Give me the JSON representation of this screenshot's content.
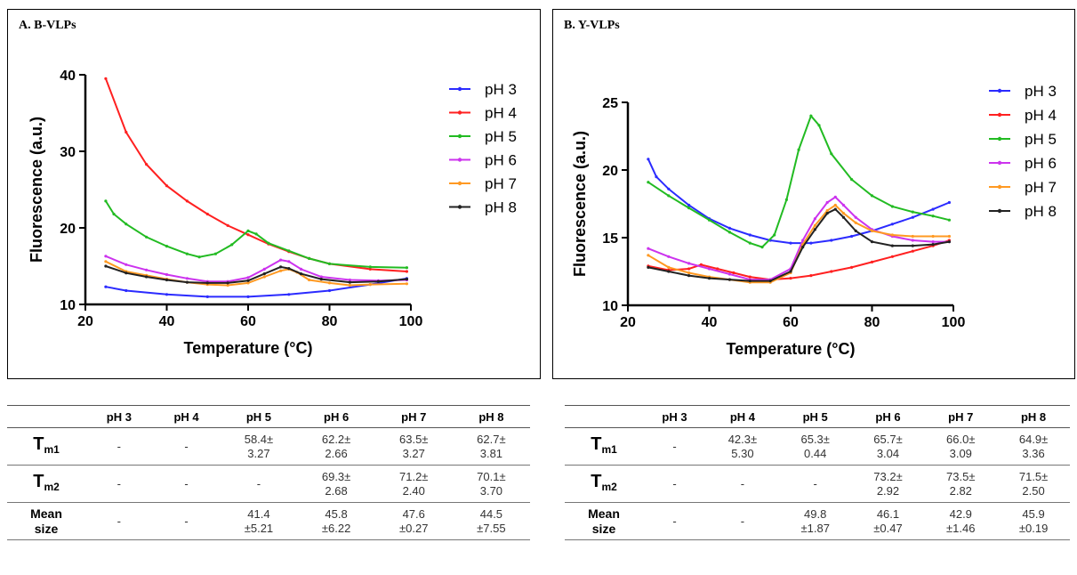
{
  "chart_data": [
    {
      "panel_title": "A. B-VLPs",
      "type": "line",
      "xlabel": "Temperature (°C)",
      "ylabel": "Fluorescence (a.u.)",
      "xlim": [
        20,
        100
      ],
      "ylim": [
        10,
        40
      ],
      "x_ticks": [
        20,
        40,
        60,
        80,
        100
      ],
      "y_ticks": [
        10,
        20,
        30,
        40
      ],
      "legend_position": "right",
      "series": [
        {
          "name": "pH 3",
          "color": "#2b2bff",
          "x": [
            25,
            30,
            40,
            50,
            60,
            70,
            80,
            90,
            99
          ],
          "y": [
            12.3,
            11.8,
            11.3,
            11.0,
            11.0,
            11.3,
            11.8,
            12.6,
            13.4
          ]
        },
        {
          "name": "pH 4",
          "color": "#ff2020",
          "x": [
            25,
            30,
            35,
            40,
            45,
            50,
            55,
            60,
            65,
            70,
            75,
            80,
            90,
            99
          ],
          "y": [
            39.5,
            32.5,
            28.3,
            25.5,
            23.5,
            21.8,
            20.3,
            19.1,
            17.9,
            16.9,
            16.0,
            15.3,
            14.6,
            14.3
          ]
        },
        {
          "name": "pH 5",
          "color": "#22bb22",
          "x": [
            25,
            27,
            30,
            35,
            40,
            45,
            48,
            52,
            56,
            60,
            62,
            65,
            70,
            75,
            80,
            90,
            99
          ],
          "y": [
            23.5,
            21.8,
            20.5,
            18.8,
            17.6,
            16.6,
            16.2,
            16.6,
            17.8,
            19.6,
            19.2,
            18.0,
            17.0,
            16.0,
            15.3,
            14.9,
            14.8
          ]
        },
        {
          "name": "pH 6",
          "color": "#cc33ee",
          "x": [
            25,
            30,
            35,
            40,
            45,
            50,
            55,
            60,
            64,
            68,
            70,
            73,
            78,
            85,
            92,
            99
          ],
          "y": [
            16.3,
            15.2,
            14.5,
            13.9,
            13.4,
            13.0,
            13.0,
            13.5,
            14.6,
            15.8,
            15.6,
            14.6,
            13.6,
            13.2,
            13.1,
            13.2
          ]
        },
        {
          "name": "pH 7",
          "color": "#ff9922",
          "x": [
            25,
            30,
            35,
            40,
            45,
            50,
            55,
            60,
            64,
            68,
            70,
            72,
            75,
            80,
            85,
            90,
            99
          ],
          "y": [
            15.6,
            14.3,
            13.8,
            13.3,
            12.9,
            12.6,
            12.5,
            12.8,
            13.6,
            14.4,
            14.6,
            14.2,
            13.2,
            12.8,
            12.5,
            12.6,
            12.7
          ]
        },
        {
          "name": "pH 8",
          "color": "#222222",
          "x": [
            25,
            30,
            35,
            40,
            45,
            50,
            55,
            60,
            64,
            68,
            70,
            73,
            78,
            85,
            92,
            99
          ],
          "y": [
            15.0,
            14.1,
            13.6,
            13.2,
            12.9,
            12.8,
            12.8,
            13.1,
            14.0,
            14.9,
            14.7,
            14.0,
            13.3,
            12.9,
            13.0,
            13.3
          ]
        }
      ]
    },
    {
      "panel_title": "B. Y-VLPs",
      "type": "line",
      "xlabel": "Temperature (°C)",
      "ylabel": "Fluorescence (a.u.)",
      "xlim": [
        20,
        100
      ],
      "ylim": [
        10,
        25
      ],
      "x_ticks": [
        20,
        40,
        60,
        80,
        100
      ],
      "y_ticks": [
        10,
        15,
        20,
        25
      ],
      "legend_position": "right",
      "series": [
        {
          "name": "pH 3",
          "color": "#2b2bff",
          "x": [
            25,
            27,
            30,
            35,
            40,
            45,
            50,
            55,
            60,
            65,
            70,
            75,
            80,
            85,
            90,
            95,
            99
          ],
          "y": [
            20.8,
            19.5,
            18.6,
            17.4,
            16.4,
            15.7,
            15.2,
            14.8,
            14.6,
            14.6,
            14.8,
            15.1,
            15.5,
            16.0,
            16.5,
            17.1,
            17.6
          ]
        },
        {
          "name": "pH 4",
          "color": "#ff2020",
          "x": [
            25,
            30,
            35,
            38,
            42,
            46,
            50,
            55,
            60,
            65,
            70,
            75,
            80,
            85,
            90,
            95,
            99
          ],
          "y": [
            12.9,
            12.6,
            12.7,
            13.0,
            12.7,
            12.4,
            12.1,
            11.9,
            12.0,
            12.2,
            12.5,
            12.8,
            13.2,
            13.6,
            14.0,
            14.4,
            14.8
          ]
        },
        {
          "name": "pH 5",
          "color": "#22bb22",
          "x": [
            25,
            30,
            35,
            40,
            45,
            50,
            53,
            56,
            59,
            62,
            65,
            67,
            70,
            75,
            80,
            85,
            90,
            95,
            99
          ],
          "y": [
            19.1,
            18.1,
            17.2,
            16.3,
            15.4,
            14.6,
            14.3,
            15.2,
            17.8,
            21.5,
            24.0,
            23.3,
            21.2,
            19.3,
            18.1,
            17.3,
            16.9,
            16.6,
            16.3
          ]
        },
        {
          "name": "pH 6",
          "color": "#cc33ee",
          "x": [
            25,
            30,
            35,
            40,
            45,
            50,
            55,
            60,
            63,
            66,
            69,
            71,
            73,
            76,
            80,
            85,
            90,
            95,
            99
          ],
          "y": [
            14.2,
            13.6,
            13.1,
            12.7,
            12.3,
            11.9,
            11.9,
            12.7,
            14.8,
            16.4,
            17.6,
            18.0,
            17.4,
            16.5,
            15.6,
            15.1,
            14.8,
            14.7,
            14.7
          ]
        },
        {
          "name": "pH 7",
          "color": "#ff9922",
          "x": [
            25,
            30,
            35,
            40,
            45,
            50,
            55,
            60,
            63,
            66,
            69,
            71,
            73,
            76,
            80,
            85,
            90,
            95,
            99
          ],
          "y": [
            13.7,
            12.8,
            12.4,
            12.1,
            11.9,
            11.7,
            11.7,
            12.4,
            14.5,
            15.9,
            17.0,
            17.4,
            16.8,
            16.1,
            15.5,
            15.2,
            15.1,
            15.1,
            15.1
          ]
        },
        {
          "name": "pH 8",
          "color": "#222222",
          "x": [
            25,
            30,
            35,
            40,
            45,
            50,
            55,
            60,
            63,
            66,
            69,
            71,
            73,
            76,
            80,
            85,
            90,
            95,
            99
          ],
          "y": [
            12.8,
            12.5,
            12.2,
            12.0,
            11.9,
            11.8,
            11.8,
            12.5,
            14.3,
            15.6,
            16.8,
            17.1,
            16.5,
            15.5,
            14.7,
            14.4,
            14.4,
            14.5,
            14.7
          ]
        }
      ]
    }
  ],
  "tables": [
    {
      "headers": [
        "",
        "pH 3",
        "pH 4",
        "pH 5",
        "pH 6",
        "pH 7",
        "pH 8"
      ],
      "rows": [
        {
          "label_main": "T",
          "label_sub": "m1",
          "cells": [
            [
              "-"
            ],
            [
              "-"
            ],
            [
              "58.4±",
              "3.27"
            ],
            [
              "62.2±",
              "2.66"
            ],
            [
              "63.5±",
              "3.27"
            ],
            [
              "62.7±",
              "3.81"
            ]
          ]
        },
        {
          "label_main": "T",
          "label_sub": "m2",
          "cells": [
            [
              "-"
            ],
            [
              "-"
            ],
            [
              "-"
            ],
            [
              "69.3±",
              "2.68"
            ],
            [
              "71.2±",
              "2.40"
            ],
            [
              "70.1±",
              "3.70"
            ]
          ]
        },
        {
          "label_line1": "Mean",
          "label_line2": "size",
          "cells": [
            [
              "-"
            ],
            [
              "-"
            ],
            [
              "41.4",
              "±5.21"
            ],
            [
              "45.8",
              "±6.22"
            ],
            [
              "47.6",
              "±0.27"
            ],
            [
              "44.5",
              "±7.55"
            ]
          ]
        }
      ]
    },
    {
      "headers": [
        "",
        "pH 3",
        "pH 4",
        "pH 5",
        "pH 6",
        "pH 7",
        "pH 8"
      ],
      "rows": [
        {
          "label_main": "T",
          "label_sub": "m1",
          "cells": [
            [
              "-"
            ],
            [
              "42.3±",
              "5.30"
            ],
            [
              "65.3±",
              "0.44"
            ],
            [
              "65.7±",
              "3.04"
            ],
            [
              "66.0±",
              "3.09"
            ],
            [
              "64.9±",
              "3.36"
            ]
          ]
        },
        {
          "label_main": "T",
          "label_sub": "m2",
          "cells": [
            [
              "-"
            ],
            [
              "-"
            ],
            [
              "-"
            ],
            [
              "73.2±",
              "2.92"
            ],
            [
              "73.5±",
              "2.82"
            ],
            [
              "71.5±",
              "2.50"
            ]
          ]
        },
        {
          "label_line1": "Mean",
          "label_line2": "size",
          "cells": [
            [
              "-"
            ],
            [
              "-"
            ],
            [
              "49.8",
              "±1.87"
            ],
            [
              "46.1",
              "±0.47"
            ],
            [
              "42.9",
              "±1.46"
            ],
            [
              "45.9",
              "±0.19"
            ]
          ]
        }
      ]
    }
  ]
}
